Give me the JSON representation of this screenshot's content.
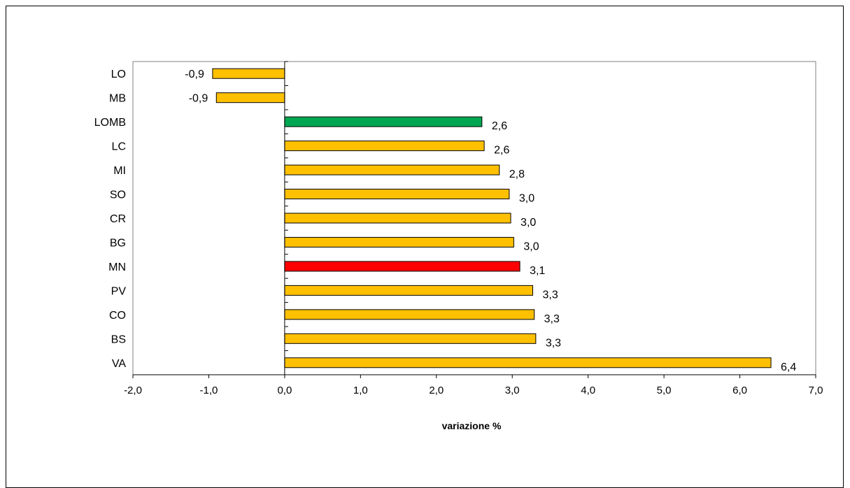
{
  "chart_data": {
    "type": "bar",
    "orientation": "horizontal",
    "title": "",
    "xlabel": "variazione %",
    "ylabel": "",
    "xlim": [
      -2.0,
      7.0
    ],
    "x_tick_step": 1.0,
    "x_tick_labels": [
      "-2,0",
      "-1,0",
      "0,0",
      "1,0",
      "2,0",
      "3,0",
      "4,0",
      "5,0",
      "6,0",
      "7,0"
    ],
    "grid": false,
    "legend": "none",
    "categories": [
      "LO",
      "MB",
      "LOMB",
      "LC",
      "MI",
      "SO",
      "CR",
      "BG",
      "MN",
      "PV",
      "CO",
      "BS",
      "VA"
    ],
    "values": [
      -0.95,
      -0.9,
      2.6,
      2.63,
      2.83,
      2.96,
      2.98,
      3.02,
      3.1,
      3.27,
      3.29,
      3.31,
      6.41
    ],
    "data_labels": [
      "-0,9",
      "-0,9",
      "2,6",
      "2,6",
      "2,8",
      "3,0",
      "3,0",
      "3,0",
      "3,1",
      "3,3",
      "3,3",
      "3,3",
      "6,4"
    ],
    "colors": {
      "default": "#FFC000",
      "LOMB": "#00A651",
      "MN": "#FF0000",
      "border": "#000000"
    }
  }
}
